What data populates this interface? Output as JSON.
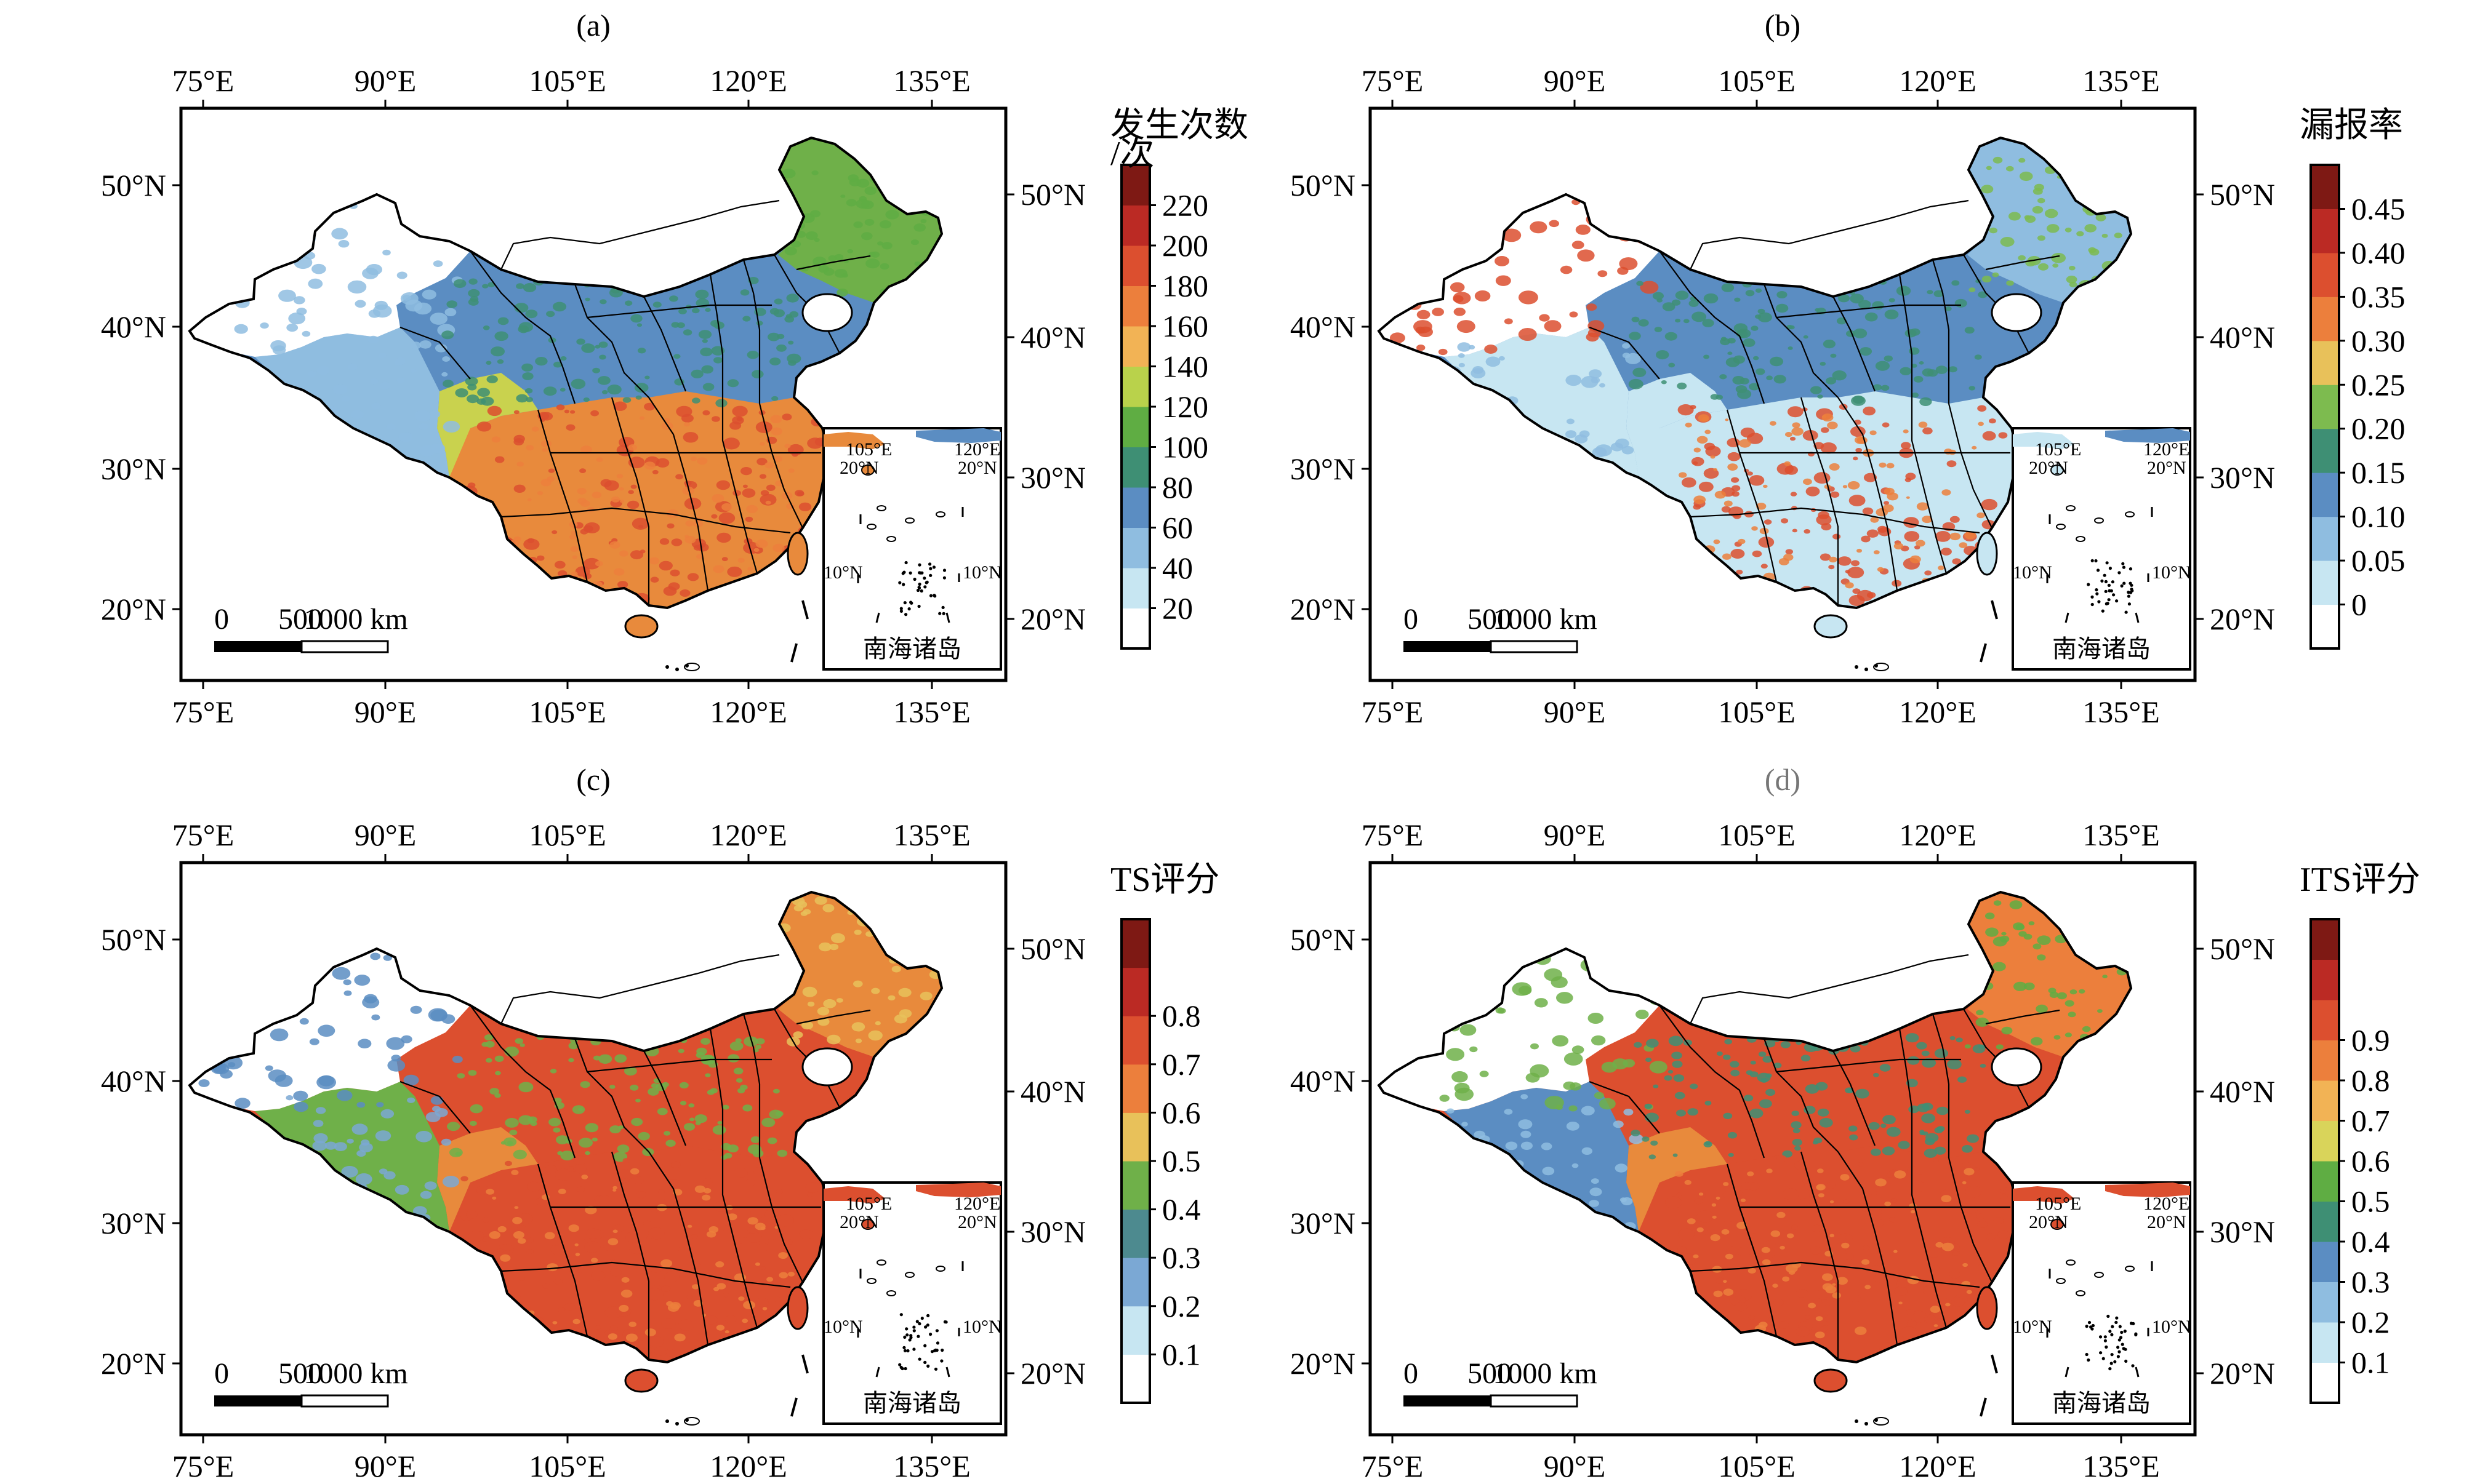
{
  "panels": [
    {
      "label": "(a)",
      "colorbar": {
        "title_line1": "发生次数",
        "title_line2": "/次",
        "ticks": [
          "20",
          "40",
          "60",
          "80",
          "100",
          "120",
          "140",
          "160",
          "180",
          "200",
          "220"
        ],
        "colors": [
          "#ffffff",
          "#c7e6f2",
          "#8fbde0",
          "#5b8dc2",
          "#3e8f74",
          "#5fad43",
          "#b9d24b",
          "#f2b355",
          "#ec7f3c",
          "#dc4f2f",
          "#bb2a24",
          "#7e1914"
        ]
      },
      "theme": "a"
    },
    {
      "label": "(b)",
      "colorbar": {
        "title_line1": "漏报率",
        "title_line2": "",
        "ticks": [
          "0",
          "0.05",
          "0.10",
          "0.15",
          "0.20",
          "0.25",
          "0.30",
          "0.35",
          "0.40",
          "0.45"
        ],
        "colors": [
          "#ffffff",
          "#c7e6f2",
          "#8fbde0",
          "#5b8dc2",
          "#3e8f74",
          "#7dbb4f",
          "#e8c15a",
          "#ec7f3c",
          "#dc4f2f",
          "#bb2a24",
          "#7e1914"
        ]
      },
      "theme": "b"
    },
    {
      "label": "(c)",
      "colorbar": {
        "title_line1": "TS评分",
        "title_line2": "",
        "ticks": [
          "0.1",
          "0.2",
          "0.3",
          "0.4",
          "0.5",
          "0.6",
          "0.7",
          "0.8"
        ],
        "colors": [
          "#ffffff",
          "#c7e6f2",
          "#7ba8d4",
          "#4d8a8f",
          "#6fb049",
          "#e8c15a",
          "#ec7f3c",
          "#dc4f2f",
          "#bb2a24",
          "#7e1914"
        ]
      },
      "theme": "c"
    },
    {
      "label": "(d)",
      "colorbar": {
        "title_line1": "ITS评分",
        "title_line2": "",
        "ticks": [
          "0.1",
          "0.2",
          "0.3",
          "0.4",
          "0.5",
          "0.6",
          "0.7",
          "0.8",
          "0.9"
        ],
        "colors": [
          "#ffffff",
          "#c7e6f2",
          "#8fbde0",
          "#5b8dc2",
          "#3e8f74",
          "#5fad43",
          "#d9d45a",
          "#f2b355",
          "#ec7f3c",
          "#dc4f2f",
          "#bb2a24",
          "#7e1914"
        ]
      },
      "theme": "d"
    }
  ],
  "axes": {
    "lon_ticks": [
      "75°E",
      "90°E",
      "105°E",
      "120°E",
      "135°E"
    ],
    "lat_ticks": [
      "50°N",
      "40°N",
      "30°N",
      "20°N"
    ]
  },
  "scale_bar": {
    "labels": [
      "0",
      "500",
      "1000 km"
    ]
  },
  "inset": {
    "title": "南海诸岛",
    "lon_labels": [
      "105°E",
      "120°E"
    ],
    "lat_labels": [
      "20°N",
      "20°N",
      "10°N",
      "10°N"
    ]
  },
  "map_colors": {
    "a": {
      "north": "#5b8dc2",
      "northeast": "#6fb049",
      "south": "#e88a3c",
      "southwest": "#c9d24e",
      "west": "#ffffff",
      "tibet": "#8fbde0",
      "xinjiang_edge": "#8fbde0"
    },
    "b": {
      "north": "#5b8dc2",
      "northeast": "#8fbde0",
      "south": "#c7e6f2",
      "southwest": "#c7e6f2",
      "west": "#ffffff",
      "tibet": "#c7e6f2",
      "xinjiang_edge": "#dc4f2f"
    },
    "c": {
      "north": "#dc4f2f",
      "northeast": "#e88a3c",
      "south": "#dc4f2f",
      "southwest": "#e88a3c",
      "west": "#ffffff",
      "tibet": "#6fb049",
      "xinjiang_edge": "#5b8dc2"
    },
    "d": {
      "north": "#dc4f2f",
      "northeast": "#ec7f3c",
      "south": "#dc4f2f",
      "southwest": "#e88a3c",
      "west": "#ffffff",
      "tibet": "#5b8dc2",
      "xinjiang_edge": "#6fb049"
    }
  }
}
